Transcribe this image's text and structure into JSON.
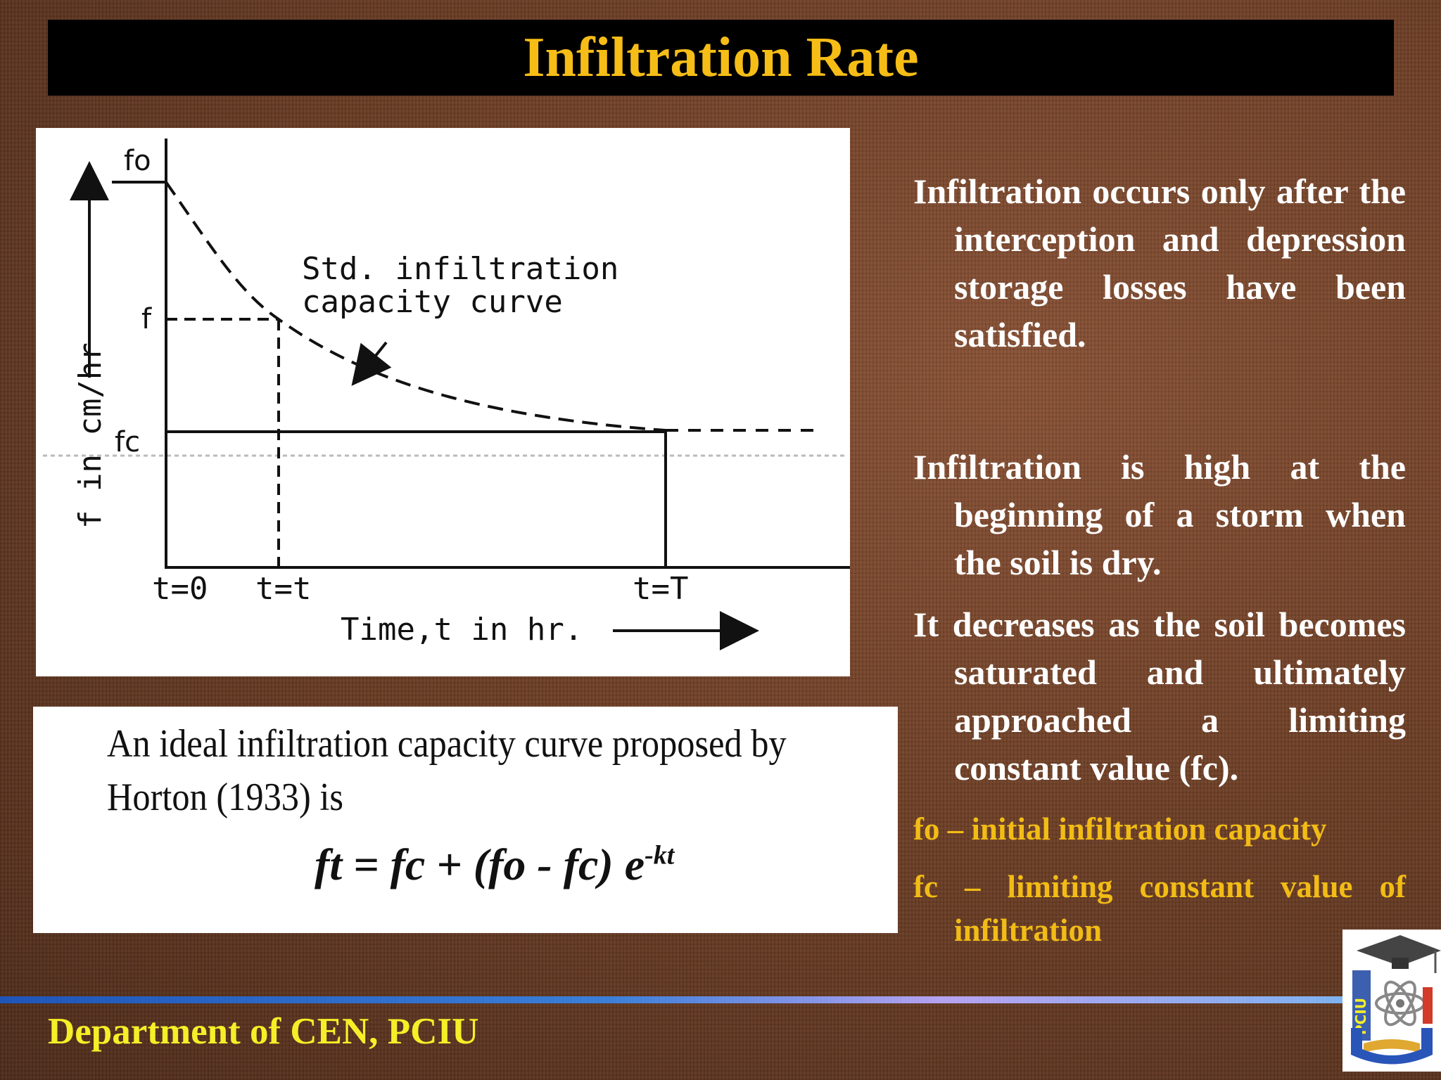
{
  "title": "Infiltration Rate",
  "graph": {
    "label_fo": "fo",
    "label_f": "f",
    "label_fc": "fc",
    "curve_label_line1": "Std. infiltration",
    "curve_label_line2": "capacity curve",
    "tick_t0": "t=0",
    "tick_tt": "t=t",
    "tick_tT": "t=T",
    "xlabel": "Time,t in hr.",
    "ylabel": "f in cm/hr"
  },
  "formula": {
    "intro": "An ideal infiltration capacity curve proposed by Horton (1933) is",
    "equation": "ft = fc + (fo - fc) e",
    "exponent": "-kt"
  },
  "paragraphs": [
    "Infiltration occurs only after the interception and depression storage losses have been satisfied.",
    "Infiltration is high at the beginning of a storm when the soil is dry.",
    "It decreases as the soil becomes saturated and ultimately approached a limiting constant value (fc)."
  ],
  "definitions": [
    "fo – initial infiltration capacity",
    "fc – limiting constant value of infiltration"
  ],
  "footer": "Department of CEN, PCIU",
  "logo_text": "PCIU",
  "colors": {
    "title": "#f6bd16",
    "definitions": "#f2bc16",
    "footer": "#f5ef27",
    "body_text": "#ffffff"
  }
}
